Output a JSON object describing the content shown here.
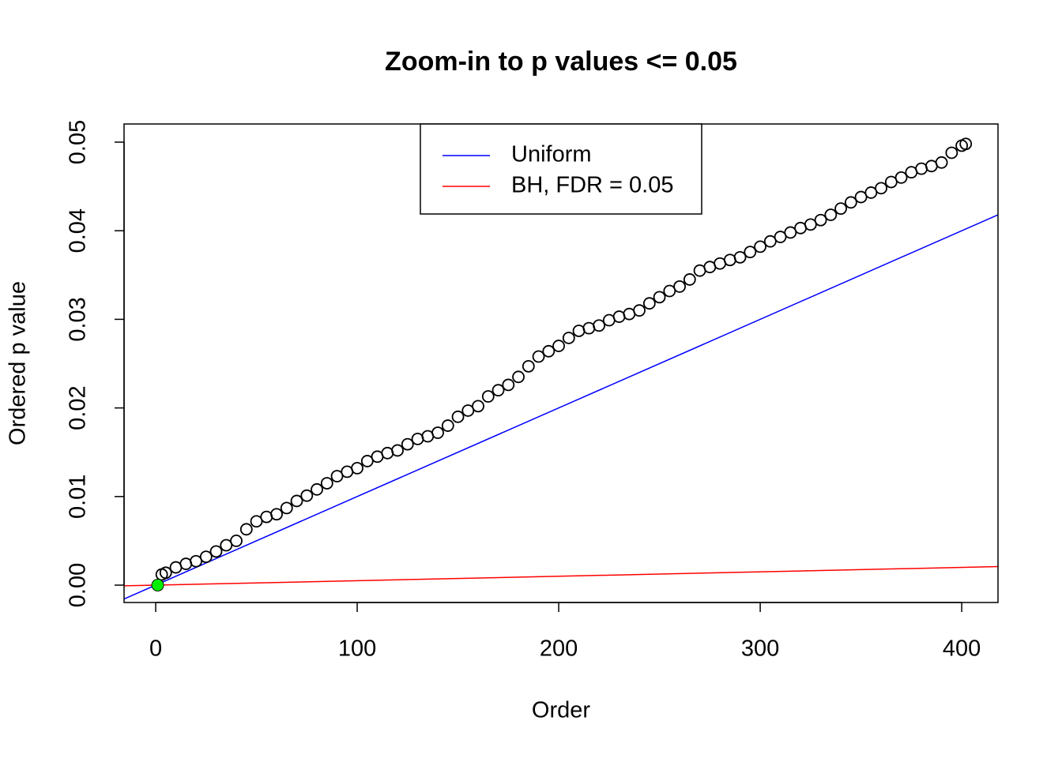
{
  "chart_data": {
    "type": "scatter",
    "title": "Zoom-in to p values <= 0.05",
    "xlabel": "Order",
    "ylabel": "Ordered p value",
    "xlim": [
      -15.7,
      418
    ],
    "ylim": [
      -0.00196,
      0.05205
    ],
    "xticks": [
      0,
      100,
      200,
      300,
      400
    ],
    "yticks": [
      {
        "value": 0,
        "label": "0.00"
      },
      0.01,
      0.02,
      0.03,
      0.04,
      0.05
    ],
    "points": {
      "color": "#000000",
      "x": [
        1,
        3,
        5,
        10,
        15,
        20,
        25,
        30,
        35,
        40,
        45,
        50,
        55,
        60,
        65,
        70,
        75,
        80,
        85,
        90,
        95,
        100,
        105,
        110,
        115,
        120,
        125,
        130,
        135,
        140,
        145,
        150,
        155,
        160,
        165,
        170,
        175,
        180,
        185,
        190,
        195,
        200,
        205,
        210,
        215,
        220,
        225,
        230,
        235,
        240,
        245,
        250,
        255,
        260,
        265,
        270,
        275,
        280,
        285,
        290,
        295,
        300,
        305,
        310,
        315,
        320,
        325,
        330,
        335,
        340,
        345,
        350,
        355,
        360,
        365,
        370,
        375,
        380,
        385,
        390,
        395,
        400,
        402
      ],
      "y": [
        0,
        0.0012,
        0.0014,
        0.002,
        0.0024,
        0.0027,
        0.0032,
        0.0038,
        0.0045,
        0.005,
        0.0063,
        0.0072,
        0.0077,
        0.008,
        0.0087,
        0.0095,
        0.0101,
        0.0108,
        0.0115,
        0.0123,
        0.0128,
        0.0132,
        0.014,
        0.0145,
        0.0149,
        0.0152,
        0.0159,
        0.0165,
        0.0168,
        0.0172,
        0.018,
        0.019,
        0.0197,
        0.0202,
        0.0213,
        0.022,
        0.0226,
        0.0235,
        0.0247,
        0.0258,
        0.0264,
        0.027,
        0.0279,
        0.0287,
        0.029,
        0.0293,
        0.0299,
        0.0303,
        0.0306,
        0.031,
        0.0318,
        0.0325,
        0.0332,
        0.0337,
        0.0345,
        0.0355,
        0.0359,
        0.0363,
        0.0367,
        0.037,
        0.0376,
        0.0382,
        0.0388,
        0.0393,
        0.0398,
        0.0403,
        0.0407,
        0.0412,
        0.0418,
        0.0425,
        0.0432,
        0.0438,
        0.0443,
        0.0448,
        0.0455,
        0.046,
        0.0466,
        0.047,
        0.0473,
        0.0477,
        0.0488,
        0.0496,
        0.0498
      ]
    },
    "highlight": {
      "x": [
        1
      ],
      "y": [
        0
      ],
      "color": "#00ee00"
    },
    "lines": [
      {
        "name": "Uniform",
        "color": "#0000ff",
        "slope": 0.0001,
        "intercept": 0
      },
      {
        "name": "BH, FDR = 0.05",
        "color": "#ff0000",
        "slope": 5e-06,
        "intercept": 0
      }
    ]
  }
}
